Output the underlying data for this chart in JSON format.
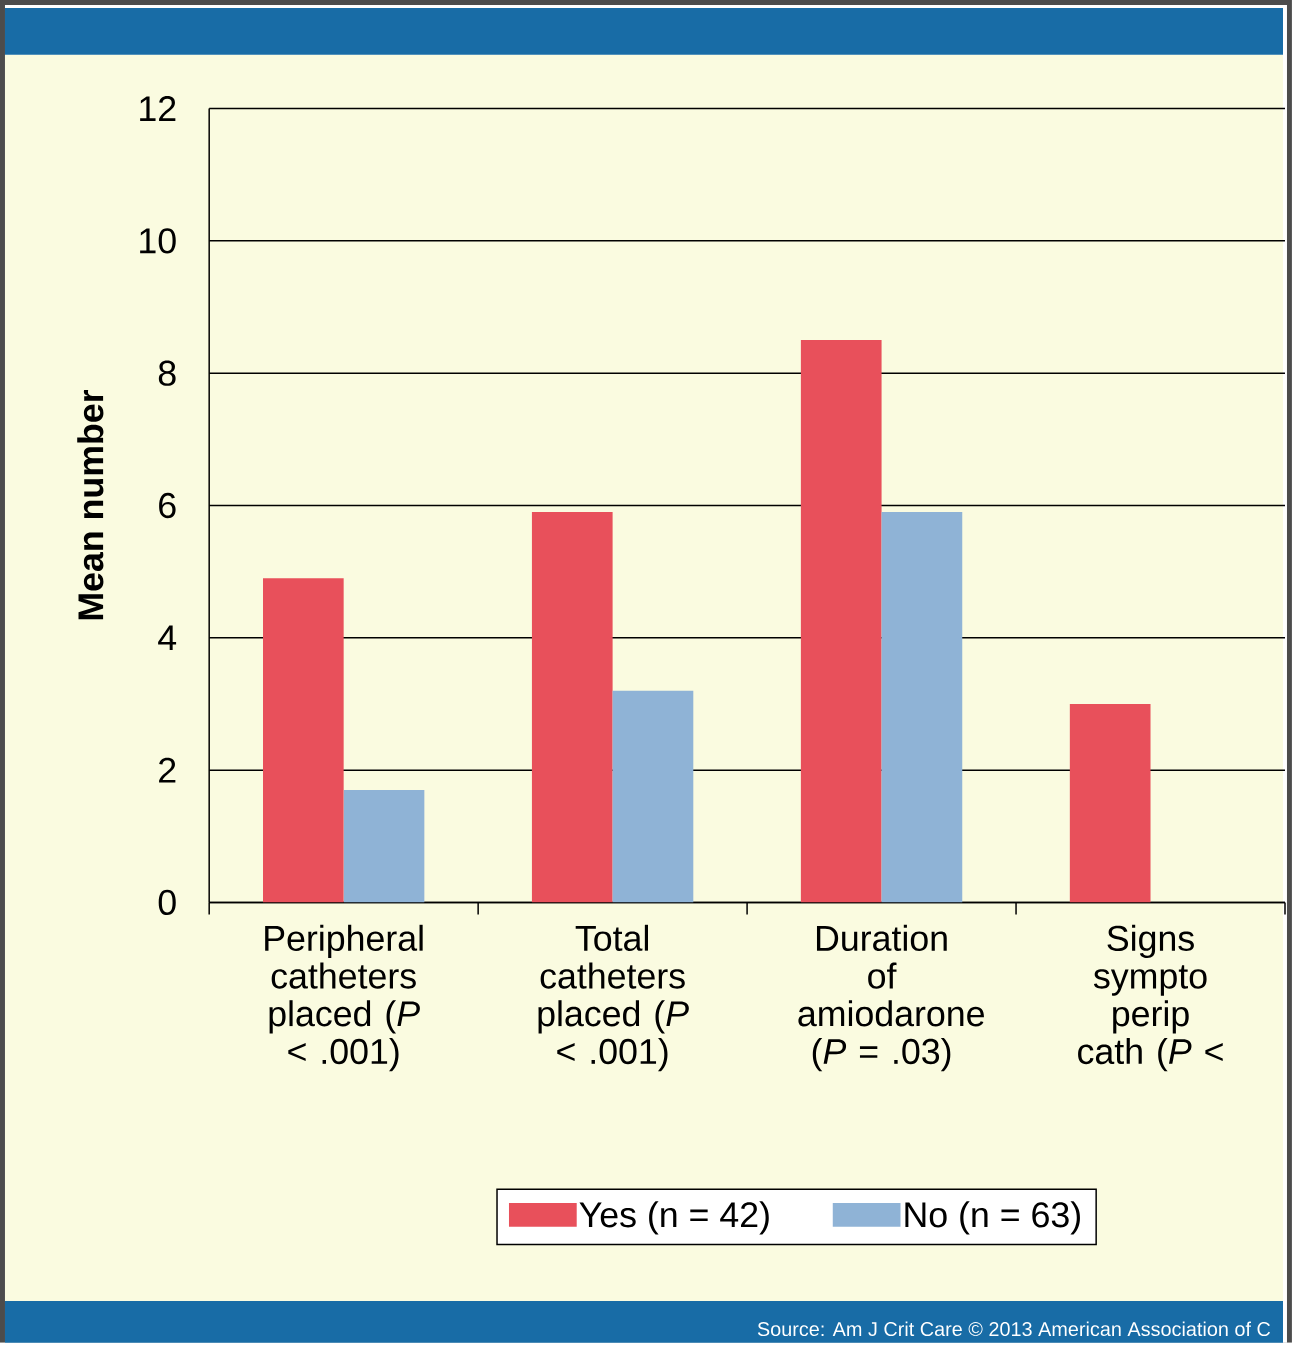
{
  "chart_data": {
    "type": "bar",
    "ylabel": "Mean number",
    "categories": [
      "Peripheral catheters placed (*P* < .001)",
      "Total catheters placed (*P* < .001)",
      "Duration of amiodarone (*P* = .03)",
      "Signs sympto perip cath (*P* <"
    ],
    "series": [
      {
        "name": "Yes (n = 42)",
        "color": "#e8505b",
        "values": [
          4.9,
          5.9,
          8.5,
          3.0
        ]
      },
      {
        "name": "No (n = 63)",
        "color": "#8fb3d6",
        "values": [
          1.7,
          3.2,
          5.9,
          null
        ]
      }
    ],
    "ylim": [
      0,
      12
    ],
    "yticks": [
      0,
      2,
      4,
      6,
      8,
      10,
      12
    ],
    "grid": "y",
    "legend": "bottom",
    "annotations": [
      "Source: Am J Crit Care © 2013 American Association of C"
    ]
  }
}
